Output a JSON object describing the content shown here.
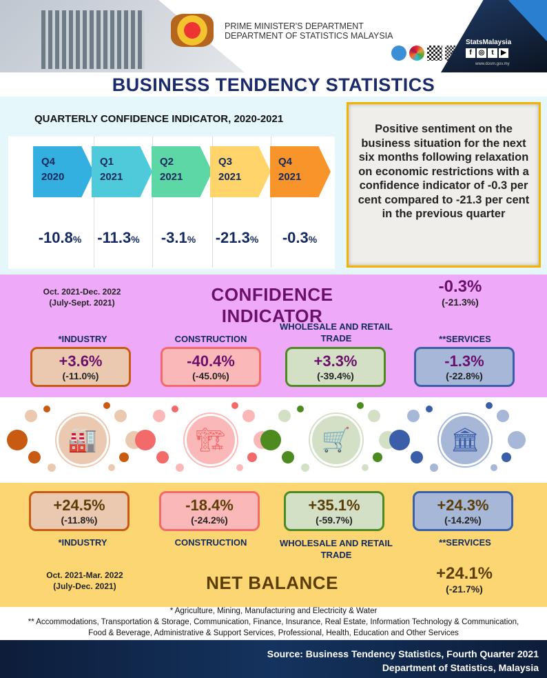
{
  "header": {
    "line1": "PRIME MINISTER'S DEPARTMENT",
    "line2": "DEPARTMENT OF STATISTICS MALAYSIA",
    "brand": "StatsMalaysia",
    "url": "www.dosm.gov.my"
  },
  "title": "BUSINESS TENDENCY STATISTICS",
  "quarterly": {
    "title": "QUARTERLY CONFIDENCE INDICATOR, 2020-2021",
    "items": [
      {
        "q": "Q4",
        "y": "2020",
        "v": "-10.8",
        "c": "#33b0e0"
      },
      {
        "q": "Q1",
        "y": "2021",
        "v": "-11.3",
        "c": "#4fcadb"
      },
      {
        "q": "Q2",
        "y": "2021",
        "v": "-3.1",
        "c": "#5dd7a6"
      },
      {
        "q": "Q3",
        "y": "2021",
        "v": "-21.3",
        "c": "#ffd46b"
      },
      {
        "q": "Q4",
        "y": "2021",
        "v": "-0.3",
        "c": "#f7952a"
      }
    ],
    "unit": "%"
  },
  "highlight": "Positive sentiment on the business situation for the next six months following relaxation on economic restrictions with a confidence indicator of -0.3 per cent compared to -21.3 per cent in the previous quarter",
  "confidence": {
    "period": "Oct. 2021-Dec.  2022",
    "prev_period": "(July-Sept. 2021)",
    "title": "CONFIDENCE INDICATOR",
    "total": "-0.3%",
    "total_prev": "(-21.3%)",
    "sectors": [
      {
        "label": "*INDUSTRY",
        "v": "+3.6%",
        "p": "(-11.0%)"
      },
      {
        "label": "CONSTRUCTION",
        "v": "-40.4%",
        "p": "(-45.0%)"
      },
      {
        "label": "WHOLESALE AND RETAIL TRADE",
        "v": "+3.3%",
        "p": "(-39.4%)"
      },
      {
        "label": "**SERVICES",
        "v": "-1.3%",
        "p": "(-22.8%)"
      }
    ]
  },
  "net": {
    "period": "Oct. 2021-Mar.  2022",
    "prev_period": "(July-Dec. 2021)",
    "title": "NET BALANCE",
    "total": "+24.1%",
    "total_prev": "(-21.7%)",
    "sectors": [
      {
        "label": "*INDUSTRY",
        "v": "+24.5%",
        "p": "(-11.8%)"
      },
      {
        "label": "CONSTRUCTION",
        "v": "-18.4%",
        "p": "(-24.2%)"
      },
      {
        "label": "WHOLESALE AND RETAIL TRADE",
        "v": "+35.1%",
        "p": "(-59.7%)"
      },
      {
        "label": "**SERVICES",
        "v": "+24.3%",
        "p": "(-14.2%)"
      }
    ]
  },
  "footnotes": {
    "f1": "* Agriculture, Mining, Manufacturing and  Electricity & Water",
    "f2": "** Accommodations, Transportation & Storage, Communication, Finance, Insurance, Real Estate, Information Technology & Communication, Food & Beverage, Administrative & Support Services, Professional, Health, Education and Other Services"
  },
  "source": {
    "l1": "Source: Business Tendency Statistics, Fourth Quarter 2021",
    "l2": "Department of Statistics, Malaysia"
  },
  "colors": {
    "industry": [
      "#ebc9b0",
      "#c85a12"
    ],
    "construction": [
      "#fbb8b8",
      "#f26a6a"
    ],
    "trade": [
      "#d4e0c6",
      "#4d8a1f"
    ],
    "services": [
      "#a6b7d8",
      "#3a5fa8"
    ]
  }
}
